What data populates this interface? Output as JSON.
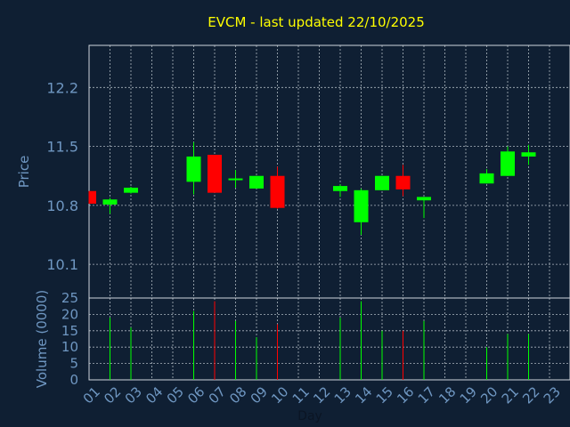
{
  "colors": {
    "background": "#0f1f33",
    "plot_border": "#cfd6dd",
    "grid": "#c8d0d8",
    "title": "#ffff00",
    "axis_text": "#6f97c2",
    "up": "#00ff00",
    "down": "#ff0000"
  },
  "chart_data": {
    "type": "candlestick",
    "title": "EVCM - last updated 22/10/2025",
    "xlabel": "Day",
    "price_panel": {
      "ylabel": "Price",
      "yticks": [
        10.1,
        10.8,
        11.5,
        12.2
      ],
      "ylim": [
        9.7,
        12.7
      ]
    },
    "volume_panel": {
      "ylabel": "Volume (0000)",
      "yticks": [
        0,
        5,
        10,
        15,
        20,
        25
      ],
      "ylim": [
        0,
        25
      ]
    },
    "x_ticks": [
      "01",
      "02",
      "03",
      "04",
      "05",
      "06",
      "07",
      "08",
      "09",
      "10",
      "11",
      "12",
      "13",
      "14",
      "15",
      "16",
      "17",
      "18",
      "19",
      "20",
      "21",
      "22",
      "23"
    ],
    "candles": [
      {
        "day": 1,
        "open": 10.97,
        "high": 10.97,
        "low": 10.82,
        "close": 10.82,
        "volume": 0
      },
      {
        "day": 2,
        "open": 10.81,
        "high": 10.89,
        "low": 10.7,
        "close": 10.87,
        "volume": 19
      },
      {
        "day": 3,
        "open": 10.95,
        "high": 11.02,
        "low": 10.94,
        "close": 11.01,
        "volume": 16
      },
      {
        "day": 6,
        "open": 11.08,
        "high": 11.55,
        "low": 10.93,
        "close": 11.38,
        "volume": 21
      },
      {
        "day": 7,
        "open": 11.4,
        "high": 11.4,
        "low": 10.95,
        "close": 10.95,
        "volume": 24
      },
      {
        "day": 8,
        "open": 11.12,
        "high": 11.22,
        "low": 11.01,
        "close": 11.12,
        "volume": 18
      },
      {
        "day": 9,
        "open": 11.0,
        "high": 11.15,
        "low": 11.0,
        "close": 11.15,
        "volume": 13
      },
      {
        "day": 10,
        "open": 11.15,
        "high": 11.26,
        "low": 10.76,
        "close": 10.77,
        "volume": 17
      },
      {
        "day": 13,
        "open": 10.97,
        "high": 11.05,
        "low": 10.9,
        "close": 11.03,
        "volume": 19
      },
      {
        "day": 14,
        "open": 10.6,
        "high": 11.0,
        "low": 10.45,
        "close": 10.98,
        "volume": 24
      },
      {
        "day": 15,
        "open": 10.98,
        "high": 11.15,
        "low": 10.98,
        "close": 11.15,
        "volume": 15
      },
      {
        "day": 16,
        "open": 11.15,
        "high": 11.28,
        "low": 10.91,
        "close": 10.99,
        "volume": 15
      },
      {
        "day": 17,
        "open": 10.86,
        "high": 10.9,
        "low": 10.65,
        "close": 10.9,
        "volume": 18
      },
      {
        "day": 20,
        "open": 11.06,
        "high": 11.23,
        "low": 11.06,
        "close": 11.18,
        "volume": 10
      },
      {
        "day": 21,
        "open": 11.15,
        "high": 11.5,
        "low": 11.15,
        "close": 11.44,
        "volume": 14
      },
      {
        "day": 22,
        "open": 11.38,
        "high": 11.52,
        "low": 11.28,
        "close": 11.43,
        "volume": 14
      }
    ]
  }
}
